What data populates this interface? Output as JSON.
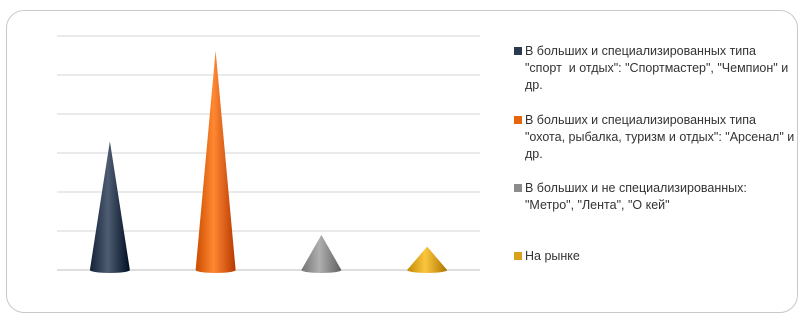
{
  "chart_data": {
    "type": "bar",
    "shape": "cone",
    "title": "",
    "xlabel": "",
    "ylabel": "",
    "categories": [
      "",
      "",
      "",
      ""
    ],
    "values": [
      4.4,
      7.5,
      1.2,
      0.8
    ],
    "ylim": [
      0,
      8
    ],
    "grid": true,
    "legend_position": "right",
    "series": [
      {
        "name": "В больших и специализированных типа \"спорт  и отдых\": \"Спортмастер\", \"Чемпион\" и др.",
        "value": 4.4,
        "color": "#2b3a4f"
      },
      {
        "name": "В больших и специализированных типа \"охота, рыбалка, туризм и отдых\": \"Арсенал\" и др.",
        "value": 7.5,
        "color": "#e4650f"
      },
      {
        "name": "В больших и не специализированных: \"Метро\", \"Лента\", \"О кей\"",
        "value": 1.2,
        "color": "#8c8c8c"
      },
      {
        "name": "На рынке",
        "value": 0.8,
        "color": "#d9a21b"
      }
    ]
  }
}
